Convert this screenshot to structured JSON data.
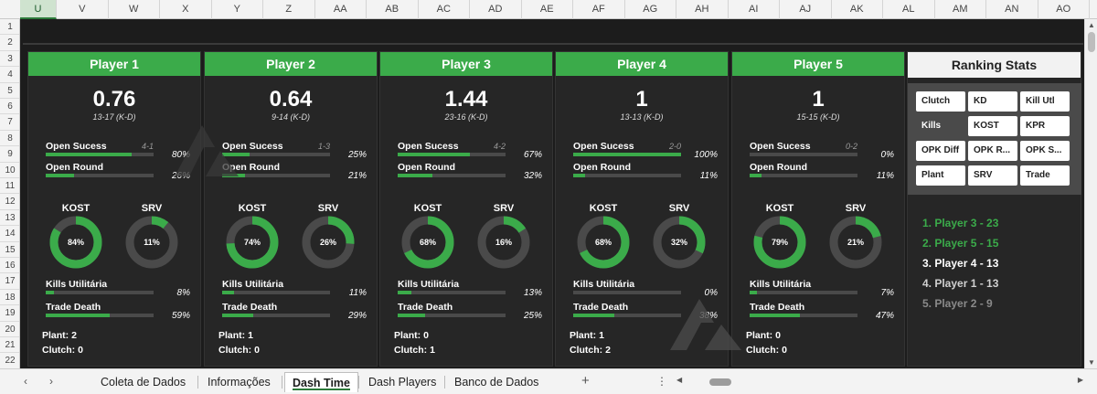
{
  "columns": [
    "U",
    "V",
    "W",
    "X",
    "Y",
    "Z",
    "AA",
    "AB",
    "AC",
    "AD",
    "AE",
    "AF",
    "AG",
    "AH",
    "AI",
    "AJ",
    "AK",
    "AL",
    "AM",
    "AN",
    "AO"
  ],
  "selected_column": "U",
  "rows": [
    "1",
    "2",
    "3",
    "4",
    "5",
    "6",
    "7",
    "8",
    "9",
    "10",
    "11",
    "12",
    "13",
    "14",
    "15",
    "16",
    "17",
    "18",
    "19",
    "20",
    "21",
    "22"
  ],
  "labels": {
    "open_sucess": "Open Sucess",
    "open_round": "Open Round",
    "kost": "KOST",
    "srv": "SRV",
    "kills_util": "Kills Utilitária",
    "trade_death": "Trade Death",
    "kd_suffix": "(K-D)"
  },
  "players": [
    {
      "name": "Player 1",
      "kd": "0.76",
      "kd_record": "13-17 (K-D)",
      "open_record": "4-1",
      "open_sucess": 80,
      "open_sucess_label": "80%",
      "open_round": 26,
      "open_round_label": "26%",
      "kost": 84,
      "kost_label": "84%",
      "srv": 11,
      "srv_label": "11%",
      "kills_util": 8,
      "kills_util_label": "8%",
      "trade_death": 59,
      "trade_death_label": "59%",
      "plant": "Plant: 2",
      "clutch": "Clutch: 0"
    },
    {
      "name": "Player 2",
      "kd": "0.64",
      "kd_record": "9-14 (K-D)",
      "open_record": "1-3",
      "open_sucess": 25,
      "open_sucess_label": "25%",
      "open_round": 21,
      "open_round_label": "21%",
      "kost": 74,
      "kost_label": "74%",
      "srv": 26,
      "srv_label": "26%",
      "kills_util": 11,
      "kills_util_label": "11%",
      "trade_death": 29,
      "trade_death_label": "29%",
      "plant": "Plant: 1",
      "clutch": "Clutch: 0"
    },
    {
      "name": "Player 3",
      "kd": "1.44",
      "kd_record": "23-16 (K-D)",
      "open_record": "4-2",
      "open_sucess": 67,
      "open_sucess_label": "67%",
      "open_round": 32,
      "open_round_label": "32%",
      "kost": 68,
      "kost_label": "68%",
      "srv": 16,
      "srv_label": "16%",
      "kills_util": 13,
      "kills_util_label": "13%",
      "trade_death": 25,
      "trade_death_label": "25%",
      "plant": "Plant: 0",
      "clutch": "Clutch: 1"
    },
    {
      "name": "Player 4",
      "kd": "1",
      "kd_record": "13-13 (K-D)",
      "open_record": "2-0",
      "open_sucess": 100,
      "open_sucess_label": "100%",
      "open_round": 11,
      "open_round_label": "11%",
      "kost": 68,
      "kost_label": "68%",
      "srv": 32,
      "srv_label": "32%",
      "kills_util": 0,
      "kills_util_label": "0%",
      "trade_death": 38,
      "trade_death_label": "38%",
      "plant": "Plant: 1",
      "clutch": "Clutch: 2"
    },
    {
      "name": "Player 5",
      "kd": "1",
      "kd_record": "15-15 (K-D)",
      "open_record": "0-2",
      "open_sucess": 0,
      "open_sucess_label": "0%",
      "open_round": 11,
      "open_round_label": "11%",
      "kost": 79,
      "kost_label": "79%",
      "srv": 21,
      "srv_label": "21%",
      "kills_util": 7,
      "kills_util_label": "7%",
      "trade_death": 47,
      "trade_death_label": "47%",
      "plant": "Plant: 0",
      "clutch": "Clutch: 0"
    }
  ],
  "ranking": {
    "title": "Ranking Stats",
    "buttons": [
      "Clutch",
      "KD",
      "Kill Utl",
      "Kills",
      "KOST",
      "KPR",
      "OPK Diff",
      "OPK R...",
      "OPK S...",
      "Plant",
      "SRV",
      "Trade"
    ],
    "active_button": "Kills",
    "list": [
      {
        "text": "1. Player 3 - 23",
        "color": "#3bab4a"
      },
      {
        "text": "2. Player 5 - 15",
        "color": "#3bab4a"
      },
      {
        "text": "3. Player 4 - 13",
        "color": "#ffffff"
      },
      {
        "text": "4. Player 1 - 13",
        "color": "#d0d0d0"
      },
      {
        "text": "5. Player 2 - 9",
        "color": "#8a8a8a"
      }
    ]
  },
  "colors": {
    "accent": "#3bab4a",
    "track": "#4a4a4a",
    "panel": "#262626"
  },
  "tabs": [
    "Coleta de Dados",
    "Informações",
    "Dash Time",
    "Dash Players",
    "Banco de Dados"
  ],
  "active_tab": "Dash Time",
  "tab_add": "+",
  "tab_more": "⋮",
  "nav_prev": "‹",
  "nav_next": "›"
}
